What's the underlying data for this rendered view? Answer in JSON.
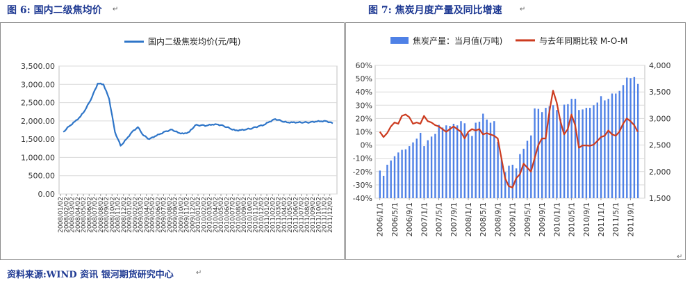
{
  "left_title": "图 6:  国内二级焦均价",
  "right_title": "图 7:  焦炭月度产量及同比增速",
  "source": "资料来源:WIND 资讯    银河期货研究中心",
  "colors": {
    "title": "#1f3a93",
    "price_line": "#2e75c8",
    "bar": "#4f81e6",
    "growth_line": "#cc3b1f",
    "plot_bg": "#ffffff",
    "grid": "#d9d9d9"
  },
  "chart_data": [
    {
      "type": "line",
      "legend": "国内二级焦炭均价(元/吨)",
      "legend_position": "top",
      "ylim": [
        0,
        3500
      ],
      "yticks": [
        "0.00",
        "500.00",
        "1,000.00",
        "1,500.00",
        "2,000.00",
        "2,500.00",
        "3,000.00",
        "3,500.00"
      ],
      "ytick_values": [
        0,
        500,
        1000,
        1500,
        2000,
        2500,
        3000,
        3500
      ],
      "xticks": [
        "2008/01/02",
        "2008/02/02",
        "2008/03/02",
        "2008/04/02",
        "2008/05/02",
        "2008/06/02",
        "2008/07/02",
        "2008/08/02",
        "2008/09/02",
        "2008/10/02",
        "2008/11/02",
        "2008/12/02",
        "2009/01/02",
        "2009/02/02",
        "2009/03/02",
        "2009/04/02",
        "2009/05/02",
        "2009/06/02",
        "2009/07/02",
        "2009/08/02",
        "2009/09/02",
        "2009/10/02",
        "2009/11/02",
        "2009/12/02",
        "2010/01/02",
        "2010/02/02",
        "2010/03/02",
        "2010/04/02",
        "2010/05/02",
        "2010/06/02",
        "2010/07/02",
        "2010/08/02",
        "2010/09/02",
        "2010/10/02",
        "2010/11/02",
        "2010/12/02",
        "2011/01/02",
        "2011/02/02",
        "2011/03/02",
        "2011/04/02",
        "2011/05/02",
        "2011/06/02",
        "2011/07/02",
        "2011/08/02",
        "2011/09/02",
        "2011/10/02",
        "2011/11/02",
        "2011/12/02"
      ],
      "x": [
        "2008/01",
        "2008/02",
        "2008/03",
        "2008/04",
        "2008/05",
        "2008/06",
        "2008/07",
        "2008/08",
        "2008/09",
        "2008/10",
        "2008/11",
        "2008/12",
        "2009/01",
        "2009/02",
        "2009/03",
        "2009/04",
        "2009/05",
        "2009/06",
        "2009/07",
        "2009/08",
        "2009/09",
        "2009/10",
        "2009/11",
        "2009/12",
        "2010/01",
        "2010/02",
        "2010/03",
        "2010/04",
        "2010/05",
        "2010/06",
        "2010/07",
        "2010/08",
        "2010/09",
        "2010/10",
        "2010/11",
        "2010/12",
        "2011/01",
        "2011/02",
        "2011/03",
        "2011/04",
        "2011/05",
        "2011/06",
        "2011/07",
        "2011/08",
        "2011/09",
        "2011/10",
        "2011/11",
        "2011/12"
      ],
      "values": [
        1700,
        1850,
        1980,
        2120,
        2350,
        2650,
        3020,
        3000,
        2600,
        1700,
        1320,
        1500,
        1700,
        1830,
        1600,
        1500,
        1580,
        1650,
        1720,
        1760,
        1680,
        1650,
        1700,
        1880,
        1880,
        1870,
        1900,
        1900,
        1860,
        1800,
        1740,
        1750,
        1770,
        1800,
        1850,
        1890,
        1980,
        2050,
        2000,
        1960,
        1960,
        1960,
        1960,
        1960,
        1980,
        1990,
        1990,
        1930
      ]
    },
    {
      "type": "bar",
      "series": [
        {
          "name": "焦炭产量：当月值(万吨)",
          "type": "bar",
          "axis": "right"
        },
        {
          "name": "与去年同期比较  M-O-M",
          "type": "line",
          "axis": "left"
        }
      ],
      "legend_position": "top",
      "ylim_left": [
        -40,
        60
      ],
      "ylim_right": [
        1500,
        4000
      ],
      "yticks_left": [
        "-40%",
        "-30%",
        "-20%",
        "-10%",
        "0%",
        "10%",
        "20%",
        "30%",
        "40%",
        "50%",
        "60%"
      ],
      "ytick_left_values": [
        -40,
        -30,
        -20,
        -10,
        0,
        10,
        20,
        30,
        40,
        50,
        60
      ],
      "yticks_right": [
        "1,500",
        "2,000",
        "2,500",
        "3,000",
        "3,500",
        "4,000"
      ],
      "ytick_right_values": [
        1500,
        2000,
        2500,
        3000,
        3500,
        4000
      ],
      "xticks": [
        "2006/1/1",
        "2006/5/1",
        "2006/9/1",
        "2007/1/1",
        "2007/5/1",
        "2007/9/1",
        "2008/1/1",
        "2008/5/1",
        "2008/9/1",
        "2009/1/1",
        "2009/5/1",
        "2009/9/1",
        "2010/1/1",
        "2010/5/1",
        "2010/9/1",
        "2011/1/1",
        "2011/5/1",
        "2011/9/1"
      ],
      "x": [
        "2006/01",
        "2006/02",
        "2006/03",
        "2006/04",
        "2006/05",
        "2006/06",
        "2006/07",
        "2006/08",
        "2006/09",
        "2006/10",
        "2006/11",
        "2006/12",
        "2007/01",
        "2007/02",
        "2007/03",
        "2007/04",
        "2007/05",
        "2007/06",
        "2007/07",
        "2007/08",
        "2007/09",
        "2007/10",
        "2007/11",
        "2007/12",
        "2008/01",
        "2008/02",
        "2008/03",
        "2008/04",
        "2008/05",
        "2008/06",
        "2008/07",
        "2008/08",
        "2008/09",
        "2008/10",
        "2008/11",
        "2008/12",
        "2009/01",
        "2009/02",
        "2009/03",
        "2009/04",
        "2009/05",
        "2009/06",
        "2009/07",
        "2009/08",
        "2009/09",
        "2009/10",
        "2009/11",
        "2009/12",
        "2010/01",
        "2010/02",
        "2010/03",
        "2010/04",
        "2010/05",
        "2010/06",
        "2010/07",
        "2010/08",
        "2010/09",
        "2010/10",
        "2010/11",
        "2010/12",
        "2011/01",
        "2011/02",
        "2011/03",
        "2011/04",
        "2011/05",
        "2011/06",
        "2011/07",
        "2011/08",
        "2011/09",
        "2011/10",
        "2011/11"
      ],
      "production": [
        2020,
        1920,
        2130,
        2210,
        2290,
        2360,
        2410,
        2420,
        2480,
        2550,
        2620,
        2730,
        2480,
        2590,
        2660,
        2710,
        2880,
        2830,
        2870,
        2860,
        2900,
        2870,
        2950,
        2910,
        2720,
        2670,
        2920,
        2940,
        3090,
        2980,
        2920,
        2950,
        2560,
        2230,
        1990,
        2110,
        2130,
        2060,
        2330,
        2430,
        2580,
        2680,
        3190,
        3180,
        3120,
        3200,
        3230,
        3250,
        3160,
        2990,
        3260,
        3270,
        3370,
        3370,
        3160,
        3170,
        3200,
        3200,
        3250,
        3300,
        3420,
        3340,
        3370,
        3470,
        3470,
        3520,
        3630,
        3770,
        3760,
        3780,
        3650
      ],
      "growth": [
        10,
        6,
        9,
        14,
        17,
        16,
        22,
        23,
        21,
        16,
        17,
        16,
        22,
        18,
        17,
        15,
        14,
        12,
        10,
        12,
        14,
        12,
        10,
        5,
        10,
        12,
        11,
        12,
        8,
        9,
        8,
        7,
        5,
        -10,
        -25,
        -31,
        -32,
        -25,
        -22,
        -14,
        -17,
        -20,
        -10,
        0,
        5,
        5,
        25,
        41,
        32,
        18,
        8,
        12,
        23,
        15,
        -2,
        -0.3,
        -0.3,
        -0.6,
        0.3,
        3,
        6,
        7,
        11,
        8,
        7,
        10,
        16,
        20,
        18,
        15,
        10
      ]
    }
  ],
  "markers": [
    "↵",
    "↵",
    "↵",
    "↵"
  ]
}
